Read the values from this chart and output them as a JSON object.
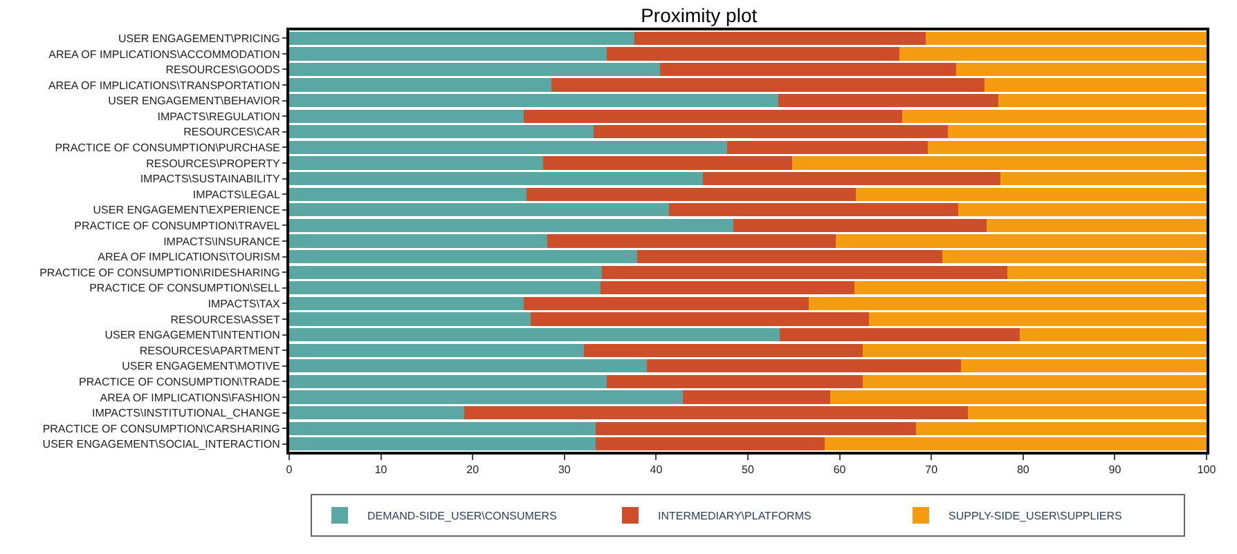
{
  "chart_data": {
    "type": "bar",
    "title": "Proximity plot",
    "orientation": "horizontal",
    "stacked": true,
    "legend": "bottom",
    "categories": [
      "USER ENGAGEMENT\\PRICING",
      "AREA OF IMPLICATIONS\\ACCOMMODATION",
      "RESOURCES\\GOODS",
      "AREA OF IMPLICATIONS\\TRANSPORTATION",
      "USER ENGAGEMENT\\BEHAVIOR",
      "IMPACTS\\REGULATION",
      "RESOURCES\\CAR",
      "PRACTICE OF CONSUMPTION\\PURCHASE",
      "RESOURCES\\PROPERTY",
      "IMPACTS\\SUSTAINABILITY",
      "IMPACTS\\LEGAL",
      "USER ENGAGEMENT\\EXPERIENCE",
      "PRACTICE OF CONSUMPTION\\TRAVEL",
      "IMPACTS\\INSURANCE",
      "AREA OF IMPLICATIONS\\TOURISM",
      "PRACTICE OF CONSUMPTION\\RIDESHARING",
      "PRACTICE OF CONSUMPTION\\SELL",
      "IMPACTS\\TAX",
      "RESOURCES\\ASSET",
      "USER ENGAGEMENT\\INTENTION",
      "RESOURCES\\APARTMENT",
      "USER ENGAGEMENT\\MOTIVE",
      "PRACTICE OF CONSUMPTION\\TRADE",
      "AREA OF IMPLICATIONS\\FASHION",
      "IMPACTS\\INSTITUTIONAL_CHANGE",
      "PRACTICE OF CONSUMPTION\\CARSHARING",
      "USER ENGAGEMENT\\SOCIAL_INTERACTION"
    ],
    "xlim": [
      0,
      100
    ],
    "xticks": [
      0,
      10,
      20,
      30,
      40,
      50,
      60,
      70,
      80,
      90,
      100
    ],
    "series": [
      {
        "name": "DEMAND-SIDE_USER\\CONSUMERS",
        "color": "#5aa7a4",
        "values": [
          37.6,
          34.6,
          40.4,
          28.6,
          53.3,
          25.6,
          33.2,
          47.7,
          27.7,
          45.1,
          25.9,
          41.4,
          48.4,
          28.1,
          37.9,
          34.1,
          33.9,
          25.6,
          26.3,
          53.5,
          32.1,
          39.0,
          34.6,
          42.9,
          19.1,
          33.4,
          33.4
        ]
      },
      {
        "name": "INTERMEDIARY\\PLATFORMS",
        "color": "#cc4e2a",
        "values": [
          31.8,
          31.9,
          32.3,
          47.2,
          24.0,
          41.2,
          38.6,
          21.9,
          27.1,
          32.4,
          35.9,
          31.5,
          27.6,
          31.5,
          33.3,
          44.2,
          27.7,
          31.0,
          36.9,
          26.1,
          30.4,
          34.2,
          27.9,
          16.1,
          54.9,
          34.9,
          25.0
        ]
      },
      {
        "name": "SUPPLY-SIDE_USER\\SUPPLIERS",
        "color": "#f39c12",
        "values": [
          30.6,
          33.5,
          27.3,
          24.2,
          22.7,
          33.2,
          28.2,
          30.4,
          45.2,
          22.5,
          38.2,
          27.1,
          24.0,
          40.4,
          28.8,
          21.7,
          38.4,
          43.4,
          36.8,
          20.4,
          37.5,
          26.8,
          37.5,
          41.0,
          26.0,
          31.7,
          41.6
        ]
      }
    ]
  }
}
